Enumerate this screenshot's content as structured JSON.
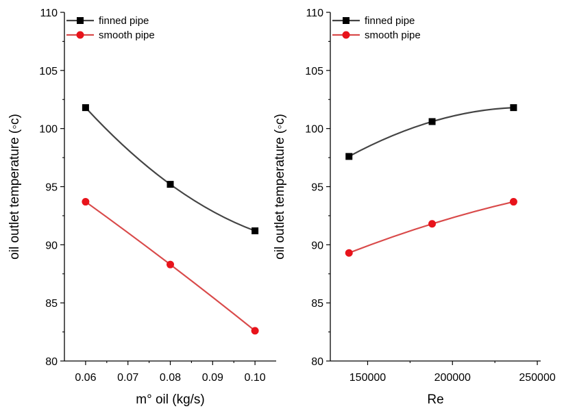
{
  "chart_data": [
    {
      "type": "line",
      "xlabel": "m° oil (kg/s)",
      "ylabel": "oil outlet temperature (◦c)",
      "xlim": [
        0.055,
        0.105
      ],
      "ylim": [
        80,
        110
      ],
      "xticks": [
        "0.06",
        "0.07",
        "0.08",
        "0.09",
        "0.10"
      ],
      "xtick_values": [
        0.06,
        0.07,
        0.08,
        0.09,
        0.1
      ],
      "yticks": [
        "80",
        "85",
        "90",
        "95",
        "100",
        "105",
        "110"
      ],
      "ytick_values": [
        80,
        85,
        90,
        95,
        100,
        105,
        110
      ],
      "legend_position": "top-left",
      "series": [
        {
          "name": "finned pipe",
          "color": "#444444",
          "marker": "square",
          "marker_color": "#000000",
          "x": [
            0.06,
            0.08,
            0.1
          ],
          "y": [
            101.8,
            95.2,
            91.2
          ]
        },
        {
          "name": "smooth pipe",
          "color": "#d94a4a",
          "marker": "circle",
          "marker_color": "#e8131b",
          "x": [
            0.06,
            0.08,
            0.1
          ],
          "y": [
            93.7,
            88.3,
            82.6
          ]
        }
      ]
    },
    {
      "type": "line",
      "xlabel": "Re",
      "ylabel": "oil outlet temperature (◦c)",
      "xlim": [
        128000,
        252000
      ],
      "ylim": [
        80,
        110
      ],
      "xticks": [
        "150000",
        "200000",
        "250000"
      ],
      "xtick_values": [
        150000,
        200000,
        250000
      ],
      "yticks": [
        "80",
        "85",
        "90",
        "95",
        "100",
        "105",
        "110"
      ],
      "ytick_values": [
        80,
        85,
        90,
        95,
        100,
        105,
        110
      ],
      "legend_position": "top-left",
      "series": [
        {
          "name": "finned pipe",
          "color": "#444444",
          "marker": "square",
          "marker_color": "#000000",
          "x": [
            139000,
            188000,
            236000
          ],
          "y": [
            97.6,
            100.6,
            101.8
          ]
        },
        {
          "name": "smooth pipe",
          "color": "#d94a4a",
          "marker": "circle",
          "marker_color": "#e8131b",
          "x": [
            139000,
            188000,
            236000
          ],
          "y": [
            89.3,
            91.8,
            93.7
          ]
        }
      ]
    }
  ]
}
